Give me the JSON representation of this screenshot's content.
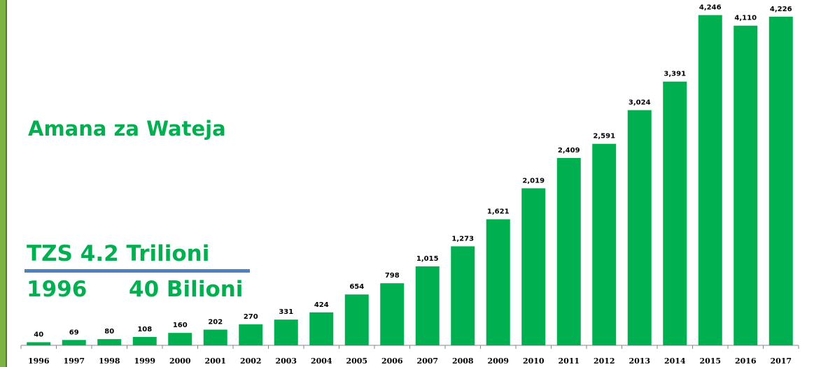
{
  "chart_data": {
    "type": "bar",
    "annotations": [
      "Amana za Wateja",
      "TZS 4.2 Trilioni",
      "1996",
      "40 Bilioni"
    ],
    "categories": [
      "1996",
      "1997",
      "1998",
      "1999",
      "2000",
      "2001",
      "2002",
      "2003",
      "2004",
      "2005",
      "2006",
      "2007",
      "2008",
      "2009",
      "2010",
      "2011",
      "2012",
      "2013",
      "2014",
      "2015",
      "2016",
      "2017"
    ],
    "values": [
      40,
      69,
      80,
      108,
      160,
      202,
      270,
      331,
      424,
      654,
      798,
      1015,
      1273,
      1621,
      2019,
      2409,
      2591,
      3024,
      3391,
      4246,
      4110,
      4226
    ],
    "value_labels": [
      "40",
      "69",
      "80",
      "108",
      "160",
      "202",
      "270",
      "331",
      "424",
      "654",
      "798",
      "1,015",
      "1,273",
      "1,621",
      "2,019",
      "2,409",
      "2,591",
      "3,024",
      "3,391",
      "4,246",
      "4,110",
      "4,226"
    ],
    "color": "#00b050",
    "ylim": [
      0,
      4440
    ]
  }
}
